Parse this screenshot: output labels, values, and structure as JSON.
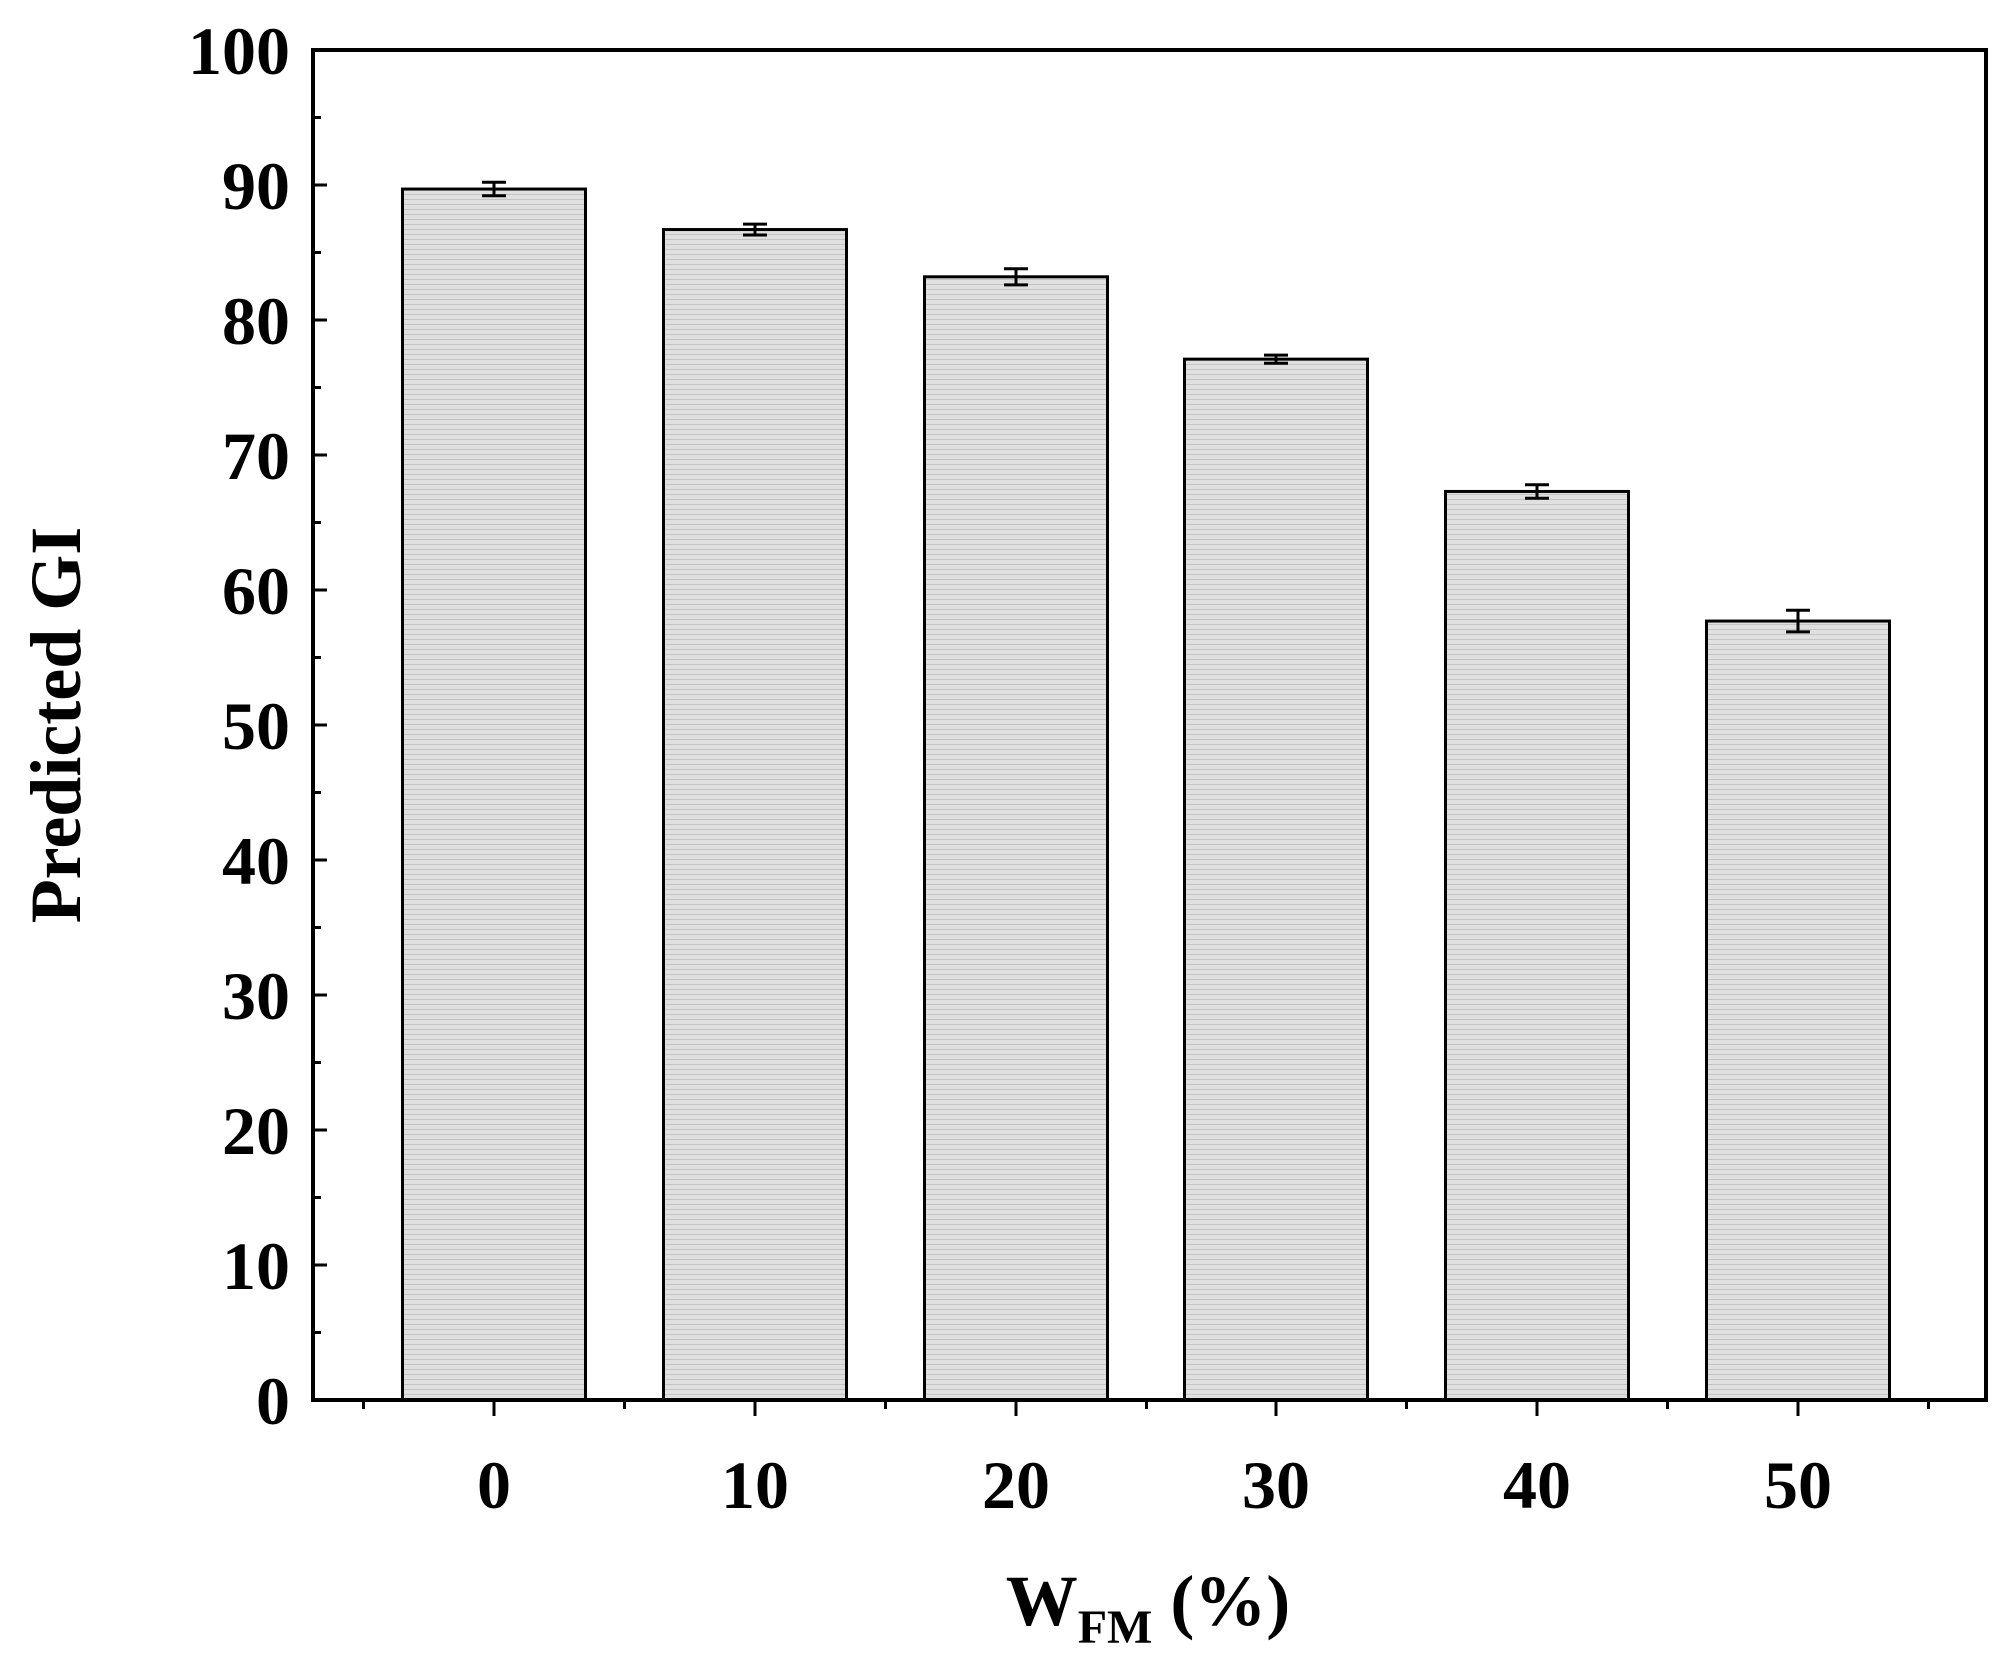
{
  "chart_data": {
    "type": "bar",
    "categories": [
      "0",
      "10",
      "20",
      "30",
      "40",
      "50"
    ],
    "values": [
      89.7,
      86.7,
      83.2,
      77.1,
      67.3,
      57.7
    ],
    "errors": [
      0.5,
      0.4,
      0.6,
      0.3,
      0.5,
      0.8
    ],
    "title": "",
    "xlabel": "W",
    "xlabel_subscript": "FM",
    "xlabel_suffix": " (%)",
    "ylabel": "Predicted GI",
    "ylim": [
      0,
      100
    ],
    "yticks": [
      "0",
      "10",
      "20",
      "30",
      "40",
      "50",
      "60",
      "70",
      "80",
      "90",
      "100"
    ],
    "grid": false,
    "legend": "none",
    "colors": {
      "bar_fill": "#e0e0e0",
      "bar_stroke": "#000000",
      "stripe": "#c4c4c4"
    }
  }
}
